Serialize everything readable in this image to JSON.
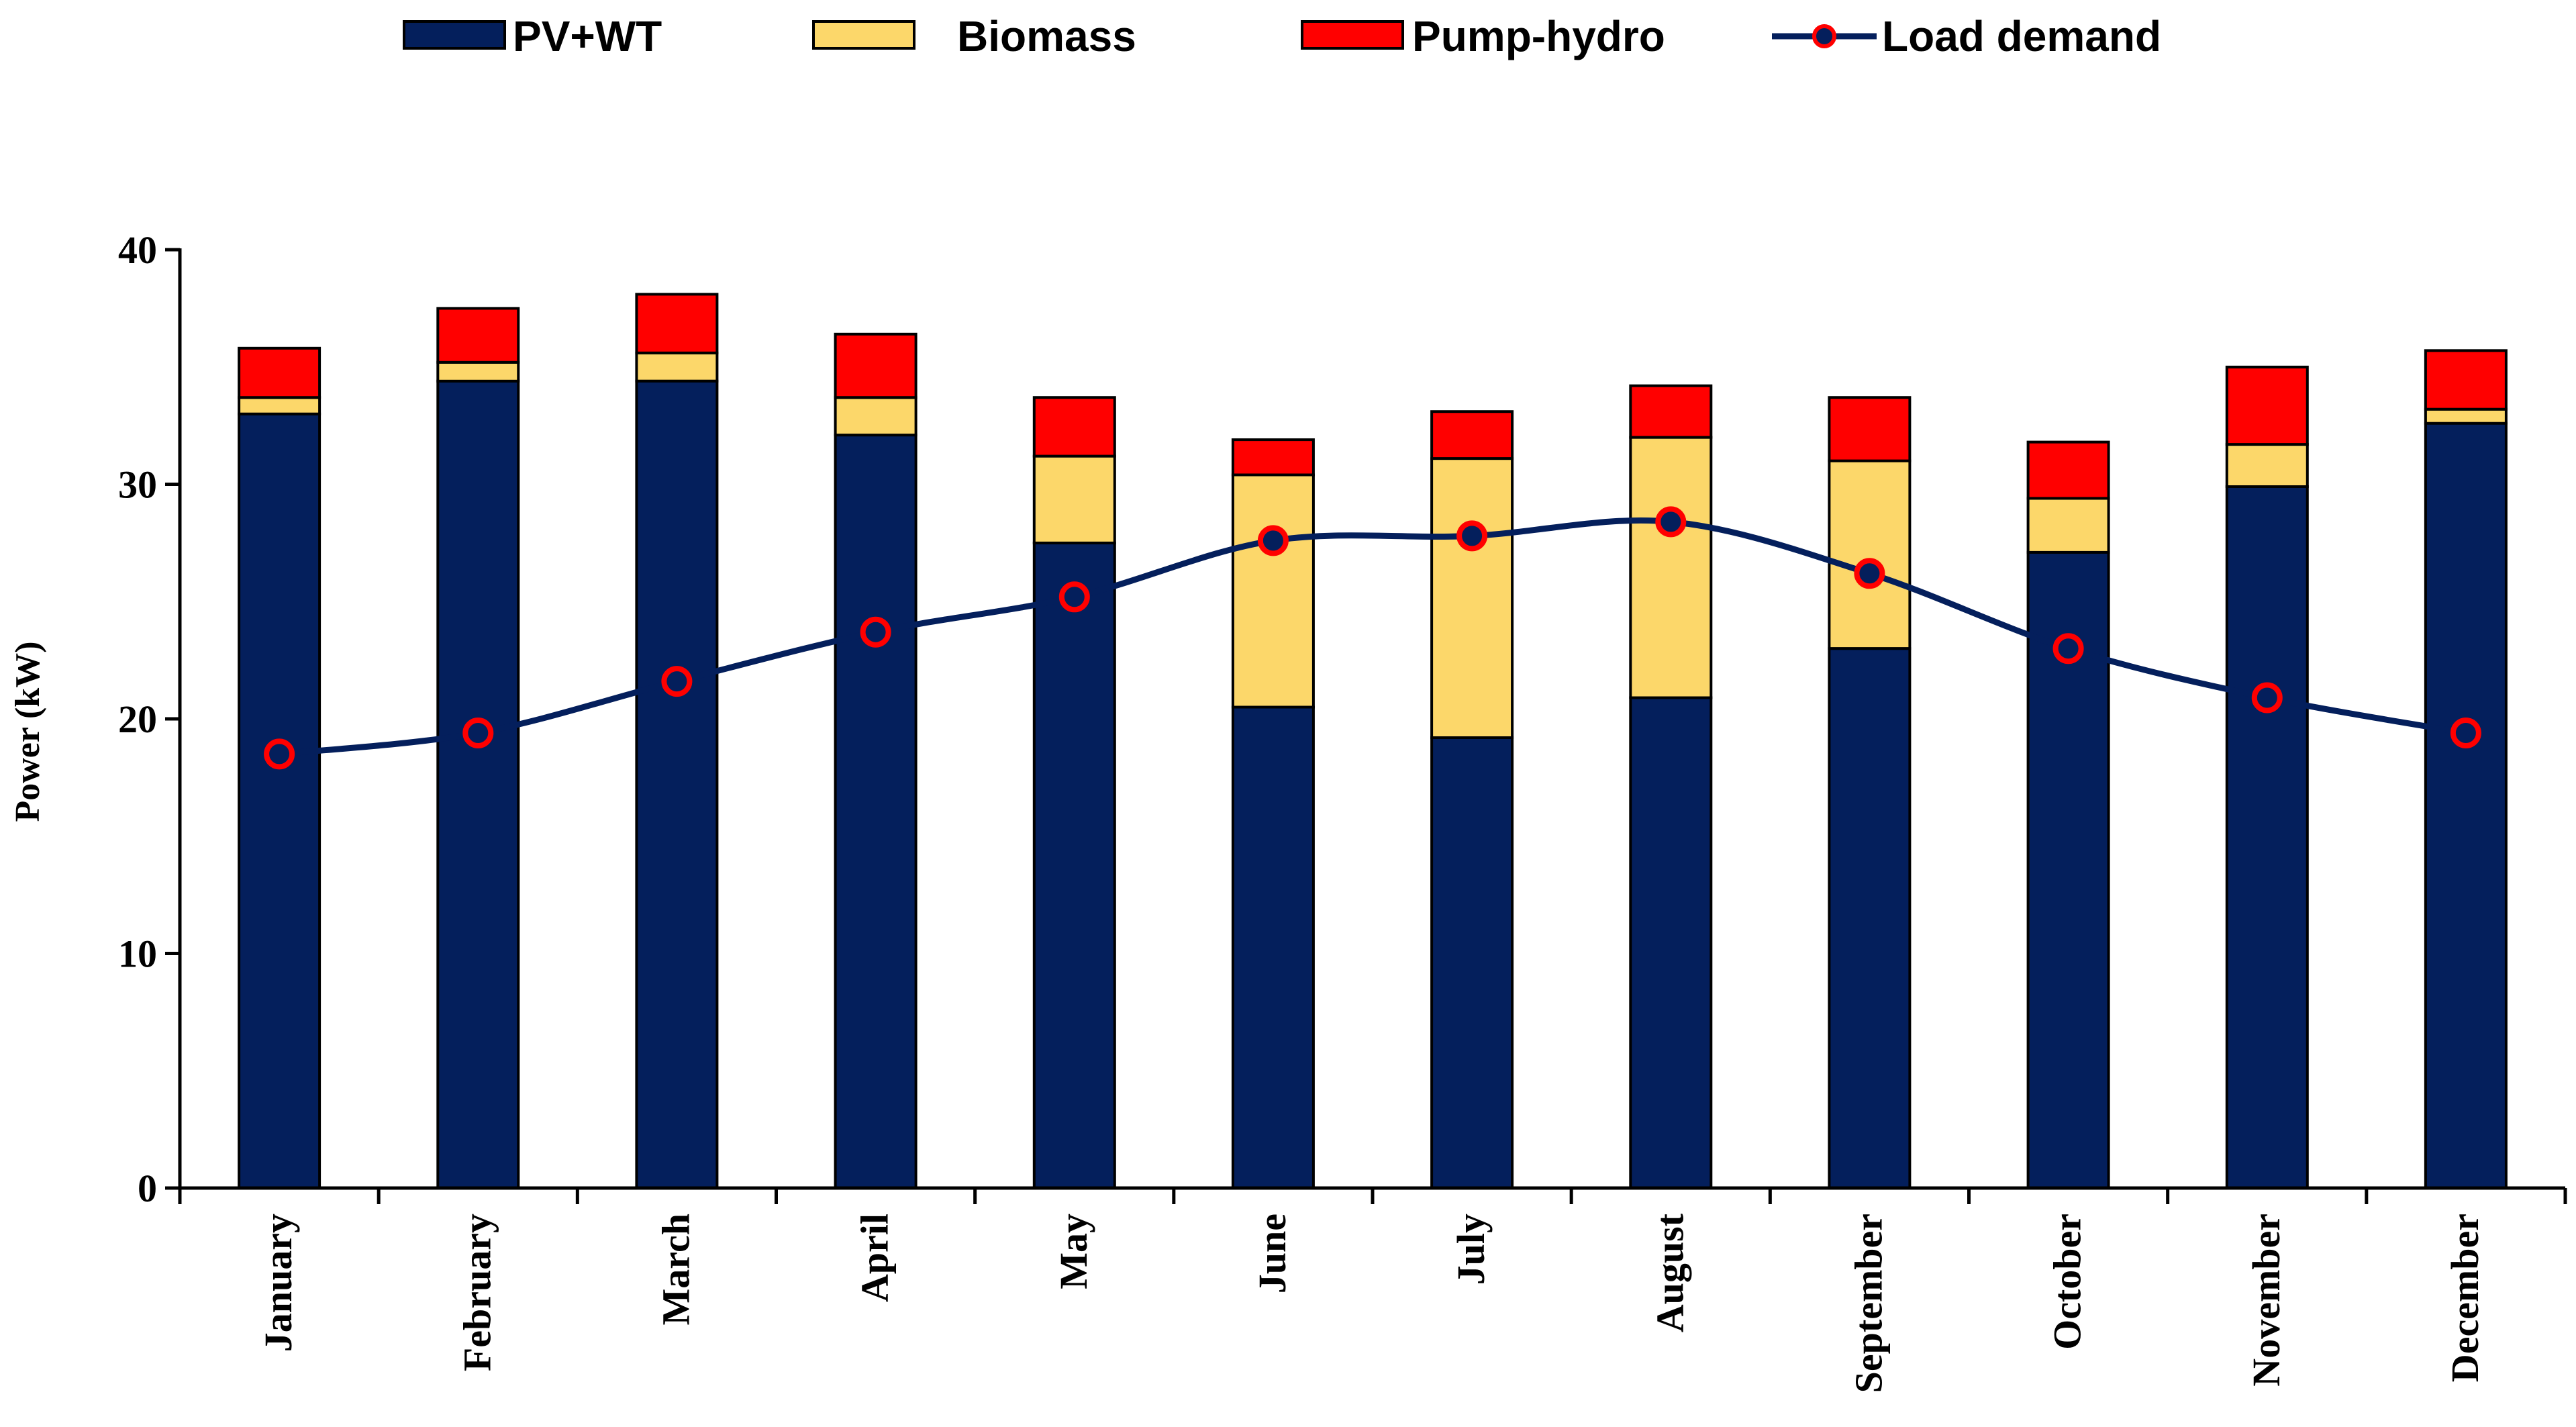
{
  "chart_data": {
    "type": "bar",
    "stacked": true,
    "title": "",
    "xlabel": "",
    "ylabel": "Power (kW)",
    "ylim": [
      0,
      40
    ],
    "yticks": [
      0,
      10,
      20,
      30,
      40
    ],
    "categories": [
      "January",
      "February",
      "March",
      "April",
      "May",
      "June",
      "July",
      "August",
      "September",
      "October",
      "November",
      "December"
    ],
    "series": [
      {
        "name": "PV+WT",
        "kind": "bar",
        "color": "#041f5c",
        "values": [
          33.0,
          34.4,
          34.4,
          32.1,
          27.5,
          20.5,
          19.2,
          20.9,
          23.0,
          27.1,
          29.9,
          32.6
        ]
      },
      {
        "name": "Biomass",
        "kind": "bar",
        "color": "#fcd76a",
        "values": [
          0.7,
          0.8,
          1.2,
          1.6,
          3.7,
          9.9,
          11.9,
          11.1,
          8.0,
          2.3,
          1.8,
          0.6
        ]
      },
      {
        "name": "Pump-hydro",
        "kind": "bar",
        "color": "#ff0000",
        "values": [
          2.1,
          2.3,
          2.5,
          2.7,
          2.5,
          1.5,
          2.0,
          2.2,
          2.7,
          2.4,
          3.3,
          2.5
        ]
      },
      {
        "name": "Load demand",
        "kind": "line",
        "color": "#041f5c",
        "marker_color": "#ff0000",
        "values": [
          18.5,
          19.4,
          21.6,
          23.7,
          25.2,
          27.6,
          27.8,
          28.4,
          26.2,
          23.0,
          20.9,
          19.4
        ]
      }
    ],
    "legend_position": "top"
  },
  "colors": {
    "pv_wt": "#041f5c",
    "biomass": "#fcd76a",
    "pump_hydro": "#ff0000",
    "load_line": "#041f5c",
    "load_marker": "#ff0000"
  }
}
